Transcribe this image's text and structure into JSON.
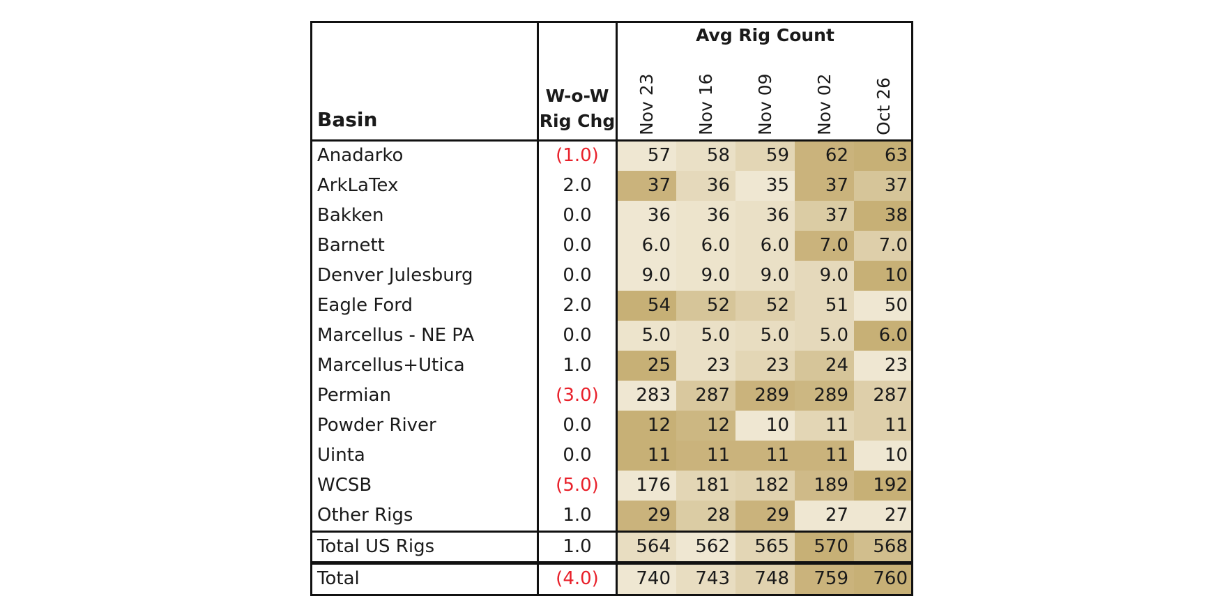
{
  "chart_data": {
    "type": "table",
    "title": "Avg Rig Count",
    "columns": {
      "basin": "Basin",
      "change_line1": "W-o-W",
      "change_line2": "Rig Chg",
      "dates": [
        "Nov 23",
        "Nov 16",
        "Nov 09",
        "Nov 02",
        "Oct 26"
      ]
    },
    "rows": [
      {
        "basin": "Anadarko",
        "change": "(1.0)",
        "negative": true,
        "values": [
          "57",
          "58",
          "59",
          "62",
          "63"
        ],
        "shade": [
          0.1,
          0.2,
          0.35,
          0.85,
          0.9
        ]
      },
      {
        "basin": "ArkLaTex",
        "change": "2.0",
        "negative": false,
        "values": [
          "37",
          "36",
          "35",
          "37",
          "37"
        ],
        "shade": [
          0.85,
          0.3,
          0.1,
          0.85,
          0.6
        ]
      },
      {
        "basin": "Bakken",
        "change": "0.0",
        "negative": false,
        "values": [
          "36",
          "36",
          "36",
          "37",
          "38"
        ],
        "shade": [
          0.1,
          0.15,
          0.2,
          0.5,
          0.9
        ]
      },
      {
        "basin": "Barnett",
        "change": "0.0",
        "negative": false,
        "values": [
          "6.0",
          "6.0",
          "6.0",
          "7.0",
          "7.0"
        ],
        "shade": [
          0.1,
          0.15,
          0.2,
          0.85,
          0.45
        ]
      },
      {
        "basin": "Denver Julesburg",
        "change": "0.0",
        "negative": false,
        "values": [
          "9.0",
          "9.0",
          "9.0",
          "9.0",
          "10"
        ],
        "shade": [
          0.1,
          0.15,
          0.2,
          0.3,
          0.9
        ]
      },
      {
        "basin": "Eagle Ford",
        "change": "2.0",
        "negative": false,
        "values": [
          "54",
          "52",
          "52",
          "51",
          "50"
        ],
        "shade": [
          0.9,
          0.6,
          0.45,
          0.3,
          0.1
        ]
      },
      {
        "basin": "Marcellus - NE PA",
        "change": "0.0",
        "negative": false,
        "values": [
          "5.0",
          "5.0",
          "5.0",
          "5.0",
          "6.0"
        ],
        "shade": [
          0.15,
          0.2,
          0.25,
          0.3,
          0.9
        ]
      },
      {
        "basin": "Marcellus+Utica",
        "change": "1.0",
        "negative": false,
        "values": [
          "25",
          "23",
          "23",
          "24",
          "23"
        ],
        "shade": [
          0.9,
          0.2,
          0.35,
          0.6,
          0.1
        ]
      },
      {
        "basin": "Permian",
        "change": "(3.0)",
        "negative": true,
        "values": [
          "283",
          "287",
          "289",
          "289",
          "287"
        ],
        "shade": [
          0.1,
          0.55,
          0.85,
          0.8,
          0.45
        ]
      },
      {
        "basin": "Powder River",
        "change": "0.0",
        "negative": false,
        "values": [
          "12",
          "12",
          "10",
          "11",
          "11"
        ],
        "shade": [
          0.9,
          0.8,
          0.1,
          0.35,
          0.45
        ]
      },
      {
        "basin": "Uinta",
        "change": "0.0",
        "negative": false,
        "values": [
          "11",
          "11",
          "11",
          "11",
          "10"
        ],
        "shade": [
          0.9,
          0.85,
          0.85,
          0.85,
          0.1
        ]
      },
      {
        "basin": "WCSB",
        "change": "(5.0)",
        "negative": true,
        "values": [
          "176",
          "181",
          "182",
          "189",
          "192"
        ],
        "shade": [
          0.1,
          0.35,
          0.4,
          0.75,
          0.9
        ]
      },
      {
        "basin": "Other Rigs",
        "change": "1.0",
        "negative": false,
        "values": [
          "29",
          "28",
          "29",
          "27",
          "27"
        ],
        "shade": [
          0.85,
          0.5,
          0.85,
          0.1,
          0.1
        ]
      }
    ],
    "totals": [
      {
        "basin": "Total US Rigs",
        "change": "1.0",
        "negative": false,
        "values": [
          "564",
          "562",
          "565",
          "570",
          "568"
        ],
        "shade": [
          0.25,
          0.1,
          0.35,
          0.9,
          0.7
        ]
      },
      {
        "basin": "Total",
        "change": "(4.0)",
        "negative": true,
        "values": [
          "740",
          "743",
          "748",
          "759",
          "760"
        ],
        "shade": [
          0.1,
          0.25,
          0.4,
          0.85,
          0.9
        ]
      }
    ],
    "colors": {
      "heat_low": "#f4eedd",
      "heat_high": "#c2a96b",
      "negative_text": "#e8202a"
    }
  }
}
